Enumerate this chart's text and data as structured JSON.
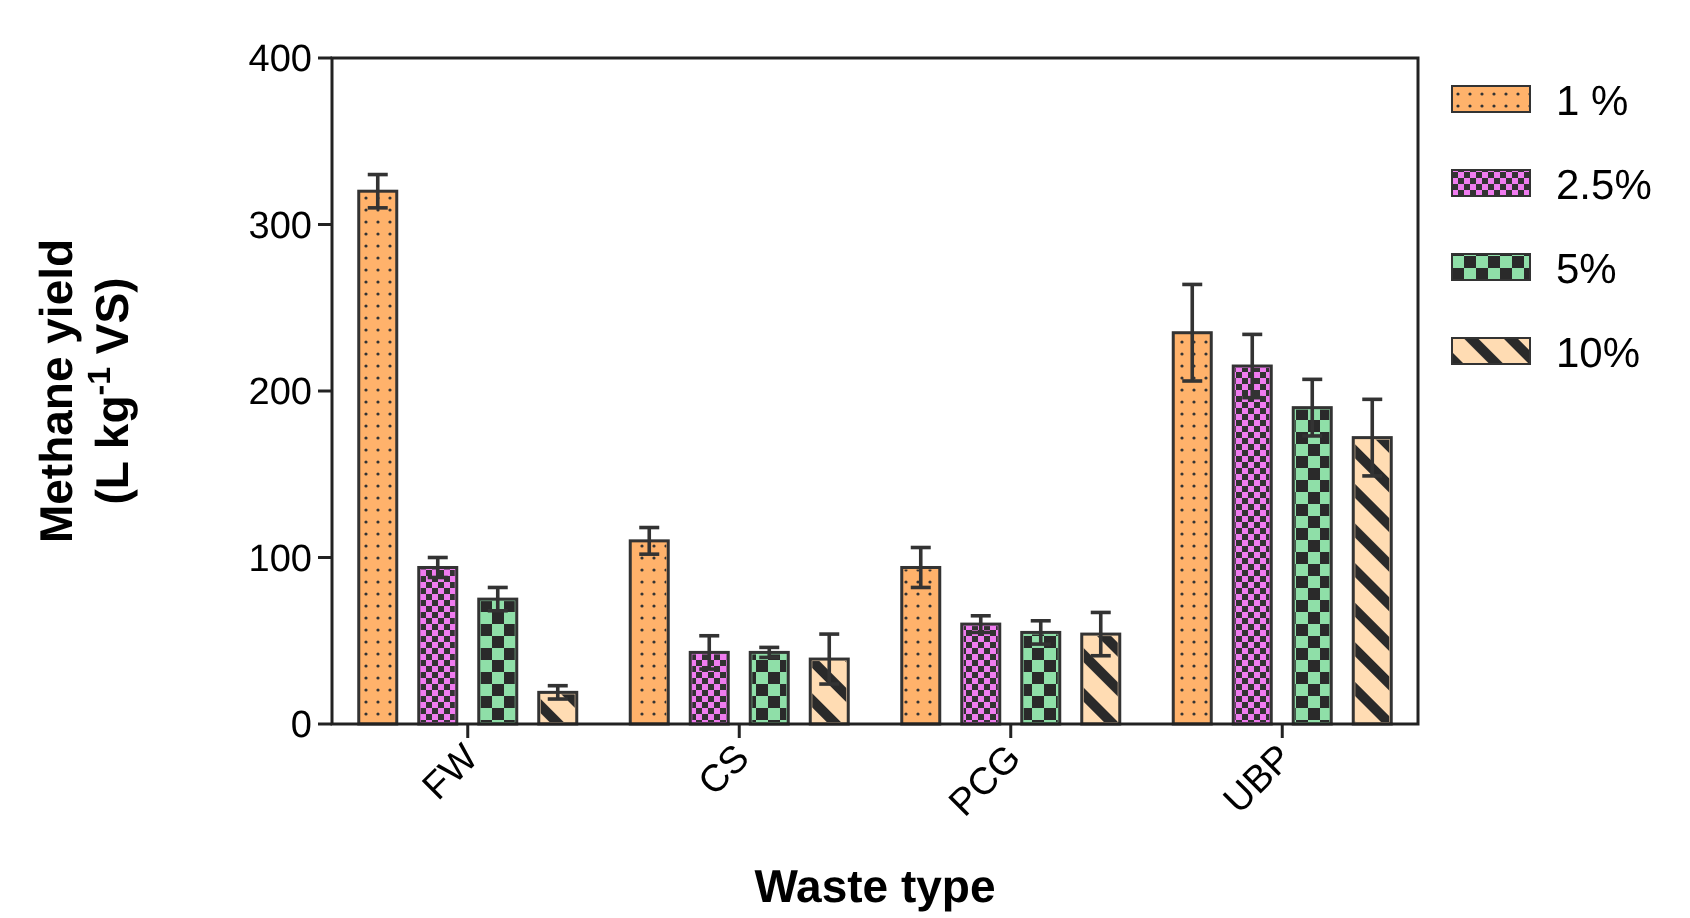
{
  "chart_data": {
    "type": "bar",
    "xlabel": "Waste type",
    "ylabel": "Methane yield\n(L kg$^{-1}$ VS)",
    "categories": [
      "FW",
      "CS",
      "PCG",
      "UBP"
    ],
    "series": [
      {
        "name": "1 %",
        "color": "#ffb26b",
        "values": [
          320,
          110,
          94,
          235
        ],
        "errors": [
          10,
          8,
          12,
          29
        ]
      },
      {
        "name": "2.5%",
        "color": "#f07cf0",
        "values": [
          94,
          43,
          60,
          215
        ],
        "errors": [
          6,
          10,
          5,
          19
        ]
      },
      {
        "name": "5%",
        "color": "#8fdfa8",
        "values": [
          75,
          43,
          55,
          190
        ],
        "errors": [
          7,
          3,
          7,
          17
        ]
      },
      {
        "name": "10%",
        "color": "#ffdcb3",
        "values": [
          19,
          39,
          54,
          172
        ],
        "errors": [
          4,
          15,
          13,
          23
        ]
      }
    ],
    "ylim": [
      0,
      400
    ],
    "yticks": [
      0,
      100,
      200,
      300,
      400
    ],
    "grid": false,
    "legend": "right"
  }
}
